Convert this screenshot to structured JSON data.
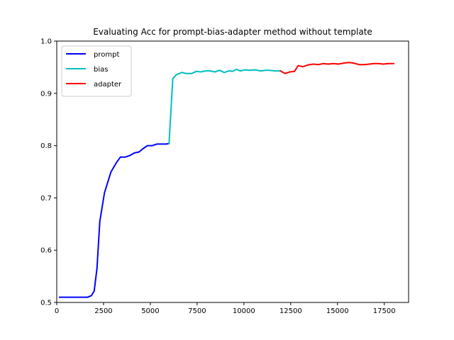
{
  "chart_data": {
    "type": "line",
    "title": "Evaluating Acc for prompt-bias-adapter method without template",
    "xlabel": "",
    "ylabel": "",
    "xlim": [
      0,
      18800
    ],
    "ylim": [
      0.5,
      1.0
    ],
    "x_ticks": [
      0,
      2500,
      5000,
      7500,
      10000,
      12500,
      15000,
      17500
    ],
    "x_tick_labels": [
      "0",
      "2500",
      "5000",
      "7500",
      "10000",
      "12500",
      "15000",
      "17500"
    ],
    "y_ticks": [
      0.5,
      0.6,
      0.7,
      0.8,
      0.9,
      1.0
    ],
    "y_tick_labels": [
      "0.5",
      "0.6",
      "0.7",
      "0.8",
      "0.9",
      "1.0"
    ],
    "grid": false,
    "legend_position": "top-left",
    "series": [
      {
        "name": "prompt",
        "color": "#0000ff",
        "x": [
          150,
          450,
          750,
          1050,
          1350,
          1650,
          1850,
          2000,
          2150,
          2300,
          2550,
          2900,
          3200,
          3400,
          3650,
          3900,
          4150,
          4400,
          4600,
          4850,
          5100,
          5350,
          5600,
          5850,
          6000
        ],
        "y": [
          0.51,
          0.51,
          0.51,
          0.51,
          0.51,
          0.51,
          0.513,
          0.522,
          0.565,
          0.655,
          0.71,
          0.75,
          0.768,
          0.778,
          0.778,
          0.781,
          0.786,
          0.788,
          0.794,
          0.8,
          0.8,
          0.803,
          0.803,
          0.803,
          0.804
        ]
      },
      {
        "name": "bias",
        "color": "#00bfbf",
        "x": [
          6000,
          6200,
          6400,
          6700,
          6900,
          7200,
          7450,
          7700,
          7950,
          8200,
          8450,
          8700,
          8950,
          9200,
          9400,
          9600,
          9800,
          10050,
          10300,
          10600,
          10900,
          11150,
          11400,
          11650,
          11950
        ],
        "y": [
          0.804,
          0.928,
          0.936,
          0.94,
          0.938,
          0.938,
          0.942,
          0.941,
          0.943,
          0.943,
          0.941,
          0.944,
          0.94,
          0.943,
          0.942,
          0.946,
          0.943,
          0.945,
          0.944,
          0.945,
          0.943,
          0.944,
          0.944,
          0.943,
          0.943
        ]
      },
      {
        "name": "adapter",
        "color": "#ff0000",
        "x": [
          11950,
          12200,
          12450,
          12700,
          12900,
          13150,
          13400,
          13700,
          14000,
          14250,
          14500,
          14800,
          15050,
          15350,
          15600,
          15850,
          16150,
          16450,
          16700,
          16950,
          17200,
          17450,
          17700,
          18000
        ],
        "y": [
          0.943,
          0.938,
          0.941,
          0.942,
          0.953,
          0.951,
          0.954,
          0.956,
          0.955,
          0.957,
          0.956,
          0.957,
          0.956,
          0.958,
          0.959,
          0.958,
          0.955,
          0.955,
          0.956,
          0.957,
          0.957,
          0.956,
          0.957,
          0.957
        ]
      }
    ]
  }
}
